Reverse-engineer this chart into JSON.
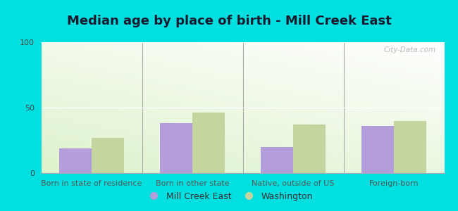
{
  "title": "Median age by place of birth - Mill Creek East",
  "categories": [
    "Born in state of residence",
    "Born in other state",
    "Native, outside of US",
    "Foreign-born"
  ],
  "mill_creek_east": [
    19,
    38,
    20,
    36
  ],
  "washington": [
    27,
    46,
    37,
    40
  ],
  "bar_color_mce": "#b39ddb",
  "bar_color_wa": "#c5d5a0",
  "ylim": [
    0,
    100
  ],
  "yticks": [
    0,
    50,
    100
  ],
  "legend_mce": "Mill Creek East",
  "legend_wa": "Washington",
  "outer_bg": "#00e0e0",
  "title_fontsize": 13,
  "tick_fontsize": 8,
  "legend_fontsize": 9,
  "bar_width": 0.32,
  "watermark": "City-Data.com"
}
